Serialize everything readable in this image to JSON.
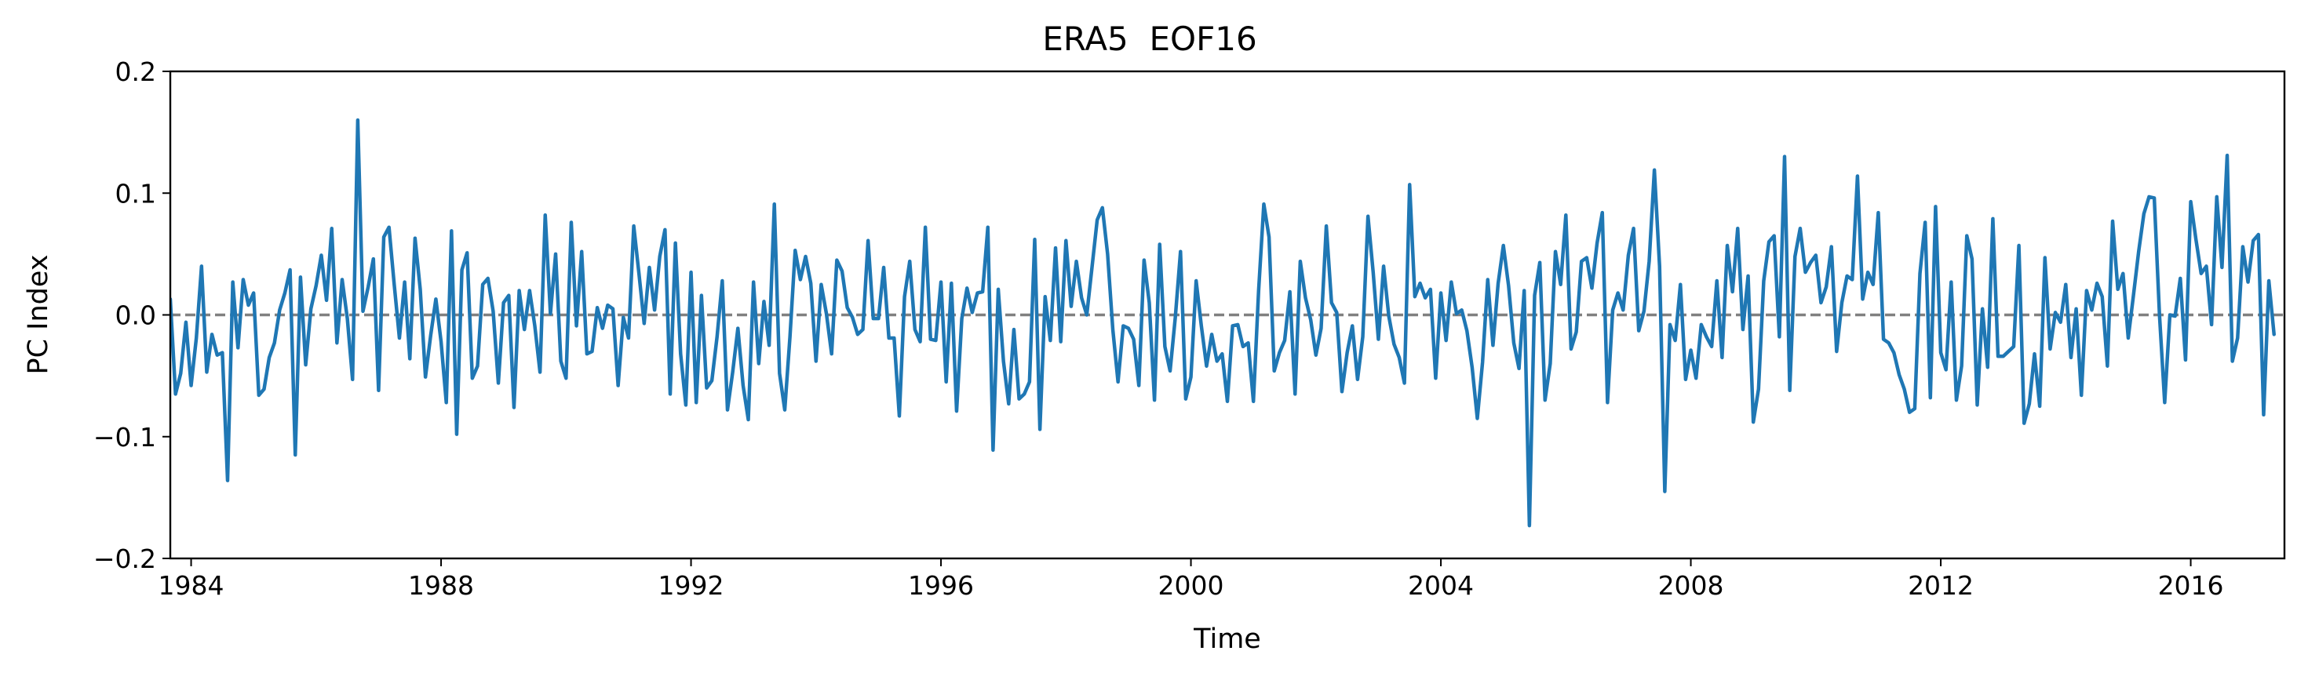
{
  "chart_data": {
    "type": "line",
    "title": "ERA5  EOF16",
    "xlabel": "Time",
    "ylabel": "PC Index",
    "xlim": [
      "1983-09",
      "2017-07"
    ],
    "ylim": [
      -0.2,
      0.2
    ],
    "x_ticks": [
      "1984",
      "1988",
      "1992",
      "1996",
      "2000",
      "2004",
      "2008",
      "2012",
      "2016"
    ],
    "y_ticks": [
      "0.2",
      "0.1",
      "0.0",
      "−0.1",
      "−0.2"
    ],
    "reference_line": {
      "y": 0.0,
      "style": "dashed",
      "color": "#808080"
    },
    "grid": false,
    "legend": "none",
    "series": [
      {
        "color": "#1f77b4",
        "start": "1983-09",
        "frequency": "monthly",
        "values": [
          0.013,
          -0.065,
          -0.048,
          -0.006,
          -0.058,
          -0.019,
          0.04,
          -0.047,
          -0.016,
          -0.033,
          -0.031,
          -0.136,
          0.027,
          -0.027,
          0.029,
          0.008,
          0.018,
          -0.066,
          -0.061,
          -0.035,
          -0.023,
          0.004,
          0.018,
          0.037,
          -0.115,
          0.031,
          -0.041,
          0.005,
          0.024,
          0.049,
          0.012,
          0.071,
          -0.023,
          0.029,
          -0.003,
          -0.053,
          0.16,
          0.003,
          0.023,
          0.046,
          -0.062,
          0.064,
          0.072,
          0.025,
          -0.019,
          0.027,
          -0.036,
          0.063,
          0.021,
          -0.051,
          -0.017,
          0.013,
          -0.022,
          -0.072,
          0.069,
          -0.098,
          0.037,
          0.051,
          -0.052,
          -0.042,
          0.025,
          0.03,
          0.003,
          -0.056,
          0.01,
          0.016,
          -0.076,
          0.02,
          -0.012,
          0.02,
          -0.009,
          -0.047,
          0.082,
          0.001,
          0.05,
          -0.038,
          -0.052,
          0.076,
          -0.009,
          0.052,
          -0.032,
          -0.03,
          0.006,
          -0.011,
          0.008,
          0.005,
          -0.058,
          -0.002,
          -0.019,
          0.073,
          0.034,
          -0.007,
          0.039,
          0.004,
          0.048,
          0.07,
          -0.065,
          0.059,
          -0.032,
          -0.074,
          0.035,
          -0.072,
          0.016,
          -0.06,
          -0.054,
          -0.018,
          0.028,
          -0.078,
          -0.047,
          -0.011,
          -0.058,
          -0.086,
          0.027,
          -0.04,
          0.011,
          -0.025,
          0.091,
          -0.048,
          -0.078,
          -0.018,
          0.053,
          0.029,
          0.048,
          0.026,
          -0.038,
          0.025,
          0.001,
          -0.032,
          0.045,
          0.036,
          0.006,
          -0.002,
          -0.016,
          -0.012,
          0.061,
          -0.003,
          -0.003,
          0.039,
          -0.019,
          -0.019,
          -0.083,
          0.015,
          0.044,
          -0.012,
          -0.022,
          0.072,
          -0.02,
          -0.021,
          0.027,
          -0.055,
          0.026,
          -0.079,
          -0.003,
          0.022,
          0.002,
          0.018,
          0.019,
          0.072,
          -0.111,
          0.021,
          -0.038,
          -0.073,
          -0.012,
          -0.069,
          -0.065,
          -0.055,
          0.062,
          -0.094,
          0.015,
          -0.021,
          0.055,
          -0.022,
          0.061,
          0.007,
          0.044,
          0.014,
          0.0,
          0.039,
          0.078,
          0.088,
          0.05,
          -0.012,
          -0.055,
          -0.009,
          -0.011,
          -0.02,
          -0.058,
          0.045,
          0.01,
          -0.07,
          0.058,
          -0.026,
          -0.046,
          -0.002,
          0.052,
          -0.069,
          -0.051,
          0.028,
          -0.009,
          -0.042,
          -0.016,
          -0.038,
          -0.032,
          -0.071,
          -0.009,
          -0.008,
          -0.026,
          -0.023,
          -0.071,
          0.02,
          0.091,
          0.064,
          -0.046,
          -0.031,
          -0.021,
          0.019,
          -0.065,
          0.044,
          0.014,
          -0.004,
          -0.033,
          -0.011,
          0.073,
          0.01,
          0.002,
          -0.063,
          -0.031,
          -0.009,
          -0.053,
          -0.018,
          0.081,
          0.035,
          -0.02,
          0.04,
          -0.001,
          -0.024,
          -0.035,
          -0.056,
          0.107,
          0.015,
          0.026,
          0.014,
          0.021,
          -0.052,
          0.018,
          -0.021,
          0.027,
          0.001,
          0.004,
          -0.013,
          -0.043,
          -0.085,
          -0.039,
          0.029,
          -0.025,
          0.026,
          0.057,
          0.024,
          -0.023,
          -0.044,
          0.02,
          -0.173,
          0.016,
          0.043,
          -0.07,
          -0.04,
          0.052,
          0.025,
          0.082,
          -0.028,
          -0.014,
          0.044,
          0.047,
          0.022,
          0.059,
          0.084,
          -0.072,
          0.004,
          0.018,
          0.004,
          0.049,
          0.071,
          -0.013,
          0.003,
          0.044,
          0.119,
          0.04,
          -0.145,
          -0.008,
          -0.021,
          0.025,
          -0.053,
          -0.029,
          -0.052,
          -0.008,
          -0.018,
          -0.026,
          0.028,
          -0.035,
          0.057,
          0.019,
          0.071,
          -0.012,
          0.032,
          -0.088,
          -0.061,
          0.028,
          0.06,
          0.065,
          -0.018,
          0.13,
          -0.062,
          0.048,
          0.071,
          0.035,
          0.043,
          0.049,
          0.01,
          0.023,
          0.056,
          -0.03,
          0.01,
          0.032,
          0.029,
          0.114,
          0.013,
          0.035,
          0.025,
          0.084,
          -0.02,
          -0.023,
          -0.031,
          -0.049,
          -0.061,
          -0.08,
          -0.077,
          0.034,
          0.076,
          -0.068,
          0.089,
          -0.031,
          -0.045,
          0.027,
          -0.07,
          -0.042,
          0.065,
          0.046,
          -0.074,
          0.005,
          -0.043,
          0.079,
          -0.034,
          -0.034,
          -0.03,
          -0.026,
          0.057,
          -0.089,
          -0.073,
          -0.032,
          -0.075,
          0.047,
          -0.028,
          0.002,
          -0.006,
          0.025,
          -0.035,
          0.005,
          -0.066,
          0.02,
          0.004,
          0.026,
          0.015,
          -0.042,
          0.077,
          0.021,
          0.034,
          -0.019,
          0.016,
          0.052,
          0.083,
          0.097,
          0.096,
          0.0,
          -0.072,
          0.0,
          -0.001,
          0.03,
          -0.037,
          0.093,
          0.062,
          0.034,
          0.04,
          -0.008,
          0.097,
          0.039,
          0.131,
          -0.038,
          -0.019,
          0.056,
          0.027,
          0.061,
          0.066,
          -0.082,
          0.028,
          -0.016
        ]
      }
    ]
  }
}
